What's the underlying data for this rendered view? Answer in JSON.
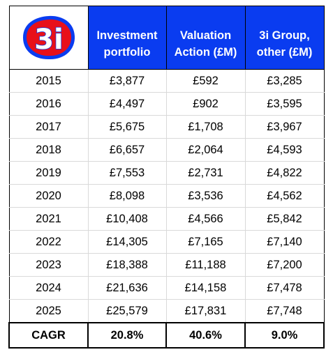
{
  "logo": {
    "text": "3i",
    "colors": {
      "fill": "#e8101a",
      "ring": "#0a3cf0"
    }
  },
  "header": {
    "col1": [
      "Investment",
      "portfolio"
    ],
    "col2": [
      "Valuation",
      "Action (£M)"
    ],
    "col3": [
      "3i Group,",
      "other (£M)"
    ]
  },
  "rows": [
    {
      "year": "2015",
      "investment": "£3,877",
      "valuation": "£592",
      "other": "£3,285"
    },
    {
      "year": "2016",
      "investment": "£4,497",
      "valuation": "£902",
      "other": "£3,595"
    },
    {
      "year": "2017",
      "investment": "£5,675",
      "valuation": "£1,708",
      "other": "£3,967"
    },
    {
      "year": "2018",
      "investment": "£6,657",
      "valuation": "£2,064",
      "other": "£4,593"
    },
    {
      "year": "2019",
      "investment": "£7,553",
      "valuation": "£2,731",
      "other": "£4,822"
    },
    {
      "year": "2020",
      "investment": "£8,098",
      "valuation": "£3,536",
      "other": "£4,562"
    },
    {
      "year": "2021",
      "investment": "£10,408",
      "valuation": "£4,566",
      "other": "£5,842"
    },
    {
      "year": "2022",
      "investment": "£14,305",
      "valuation": "£7,165",
      "other": "£7,140"
    },
    {
      "year": "2023",
      "investment": "£18,388",
      "valuation": "£11,188",
      "other": "£7,200"
    },
    {
      "year": "2024",
      "investment": "£21,636",
      "valuation": "£14,158",
      "other": "£7,478"
    },
    {
      "year": "2025",
      "investment": "£25,579",
      "valuation": "£17,831",
      "other": "£7,748"
    }
  ],
  "cagr": {
    "label": "CAGR",
    "investment": "20.8%",
    "valuation": "40.6%",
    "other": "9.0%"
  },
  "colors": {
    "header_bg": "#0a3cf0",
    "header_text": "#ffffff"
  }
}
